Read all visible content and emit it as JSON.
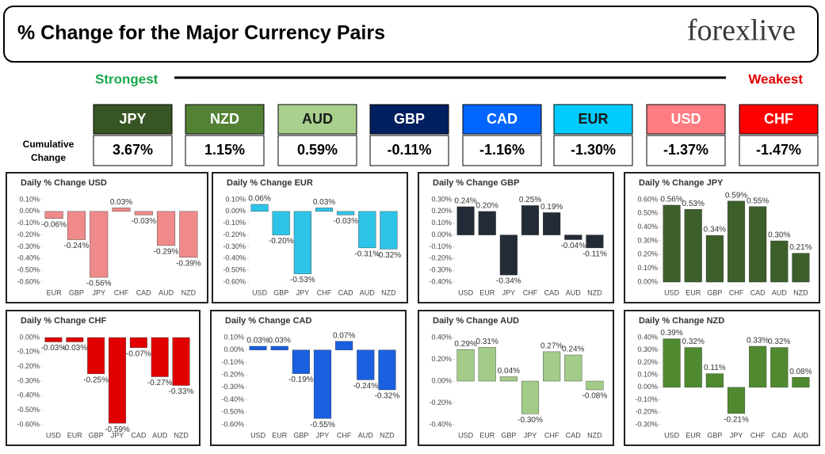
{
  "header": {
    "title": "% Change for the Major Currency Pairs",
    "logo": "forexlive"
  },
  "ranking": {
    "strongest": "Strongest",
    "weakest": "Weakest",
    "row_label": "Cumulative Change",
    "currencies": [
      "JPY",
      "NZD",
      "AUD",
      "GBP",
      "CAD",
      "EUR",
      "USD",
      "CHF"
    ],
    "changes": [
      "3.67%",
      "1.15%",
      "0.59%",
      "-0.11%",
      "-1.16%",
      "-1.30%",
      "-1.37%",
      "-1.47%"
    ],
    "colors": [
      "#375623",
      "#548235",
      "#a9d08e",
      "#002060",
      "#0066ff",
      "#00ccff",
      "#ff7c80",
      "#ff0000"
    ],
    "text_colors": [
      "#ffffff",
      "#ffffff",
      "#1a1a1a",
      "#ffffff",
      "#ffffff",
      "#1a1a1a",
      "#ffffff",
      "#ffffff"
    ]
  },
  "chart_data": [
    {
      "type": "bar",
      "title": "Daily % Change USD",
      "color": "#f08a8a",
      "categories": [
        "EUR",
        "GBP",
        "JPY",
        "CHF",
        "CAD",
        "AUD",
        "NZD"
      ],
      "values": [
        -0.06,
        -0.24,
        -0.56,
        0.03,
        -0.03,
        -0.29,
        -0.39
      ],
      "value_labels": [
        "-0.06%",
        "-0.24%",
        "-0.56%",
        "0.03%",
        "-0.03%",
        "-0.29%",
        "-0.39%"
      ],
      "ylim": [
        -0.6,
        0.1
      ],
      "yticks": [
        {
          "value": 0.1,
          "label": "0.10%"
        },
        {
          "value": 0,
          "label": "0.00%"
        },
        {
          "value": -0.1,
          "label": "-0.10%"
        },
        {
          "value": -0.2,
          "label": "-0.20%"
        },
        {
          "value": -0.3,
          "label": "-0.30%"
        },
        {
          "value": -0.4,
          "label": "-0.40%"
        },
        {
          "value": -0.5,
          "label": "-0.50%"
        },
        {
          "value": -0.6,
          "label": "-0.60%"
        }
      ]
    },
    {
      "type": "bar",
      "title": "Daily % Change EUR",
      "color": "#2ec4e8",
      "categories": [
        "USD",
        "GBP",
        "JPY",
        "CHF",
        "CAD",
        "AUD",
        "NZD"
      ],
      "values": [
        0.06,
        -0.2,
        -0.53,
        0.03,
        -0.03,
        -0.31,
        -0.32
      ],
      "value_labels": [
        "0.06%",
        "-0.20%",
        "-0.53%",
        "0.03%",
        "-0.03%",
        "-0.31%",
        "-0.32%"
      ],
      "ylim": [
        -0.6,
        0.1
      ],
      "yticks": [
        {
          "value": 0.1,
          "label": "0.10%"
        },
        {
          "value": 0,
          "label": "0.00%"
        },
        {
          "value": -0.1,
          "label": "-0.10%"
        },
        {
          "value": -0.2,
          "label": "-0.20%"
        },
        {
          "value": -0.3,
          "label": "-0.30%"
        },
        {
          "value": -0.4,
          "label": "-0.40%"
        },
        {
          "value": -0.5,
          "label": "-0.50%"
        },
        {
          "value": -0.6,
          "label": "-0.60%"
        }
      ]
    },
    {
      "type": "bar",
      "title": "Daily % Change GBP",
      "color": "#222b36",
      "categories": [
        "USD",
        "EUR",
        "JPY",
        "CHF",
        "CAD",
        "AUD",
        "NZD"
      ],
      "values": [
        0.24,
        0.2,
        -0.34,
        0.25,
        0.19,
        -0.04,
        -0.11
      ],
      "value_labels": [
        "0.24%",
        "0.20%",
        "-0.34%",
        "0.25%",
        "0.19%",
        "-0.04%",
        "-0.11%"
      ],
      "ylim": [
        -0.4,
        0.3
      ],
      "yticks": [
        {
          "value": 0.3,
          "label": "0.30%"
        },
        {
          "value": 0.2,
          "label": "0.20%"
        },
        {
          "value": 0.1,
          "label": "0.10%"
        },
        {
          "value": 0,
          "label": "0.00%"
        },
        {
          "value": -0.1,
          "label": "-0.10%"
        },
        {
          "value": -0.2,
          "label": "-0.20%"
        },
        {
          "value": -0.3,
          "label": "-0.30%"
        },
        {
          "value": -0.4,
          "label": "-0.40%"
        }
      ]
    },
    {
      "type": "bar",
      "title": "Daily % Change JPY",
      "color": "#3d5f2a",
      "categories": [
        "USD",
        "EUR",
        "GBP",
        "CHF",
        "CAD",
        "AUD",
        "NZD"
      ],
      "values": [
        0.56,
        0.53,
        0.34,
        0.59,
        0.55,
        0.3,
        0.21
      ],
      "value_labels": [
        "0.56%",
        "0.53%",
        "0.34%",
        "0.59%",
        "0.55%",
        "0.30%",
        "0.21%"
      ],
      "ylim": [
        0,
        0.6
      ],
      "yticks": [
        {
          "value": 0.6,
          "label": "0.60%"
        },
        {
          "value": 0.5,
          "label": "0.50%"
        },
        {
          "value": 0.4,
          "label": "0.40%"
        },
        {
          "value": 0.3,
          "label": "0.30%"
        },
        {
          "value": 0.2,
          "label": "0.20%"
        },
        {
          "value": 0.1,
          "label": "0.10%"
        },
        {
          "value": 0,
          "label": "0.00%"
        }
      ]
    },
    {
      "type": "bar",
      "title": "Daily % Change CHF",
      "color": "#e00000",
      "categories": [
        "USD",
        "EUR",
        "GBP",
        "JPY",
        "CAD",
        "AUD",
        "NZD"
      ],
      "values": [
        -0.03,
        -0.03,
        -0.25,
        -0.59,
        -0.07,
        -0.27,
        -0.33
      ],
      "value_labels": [
        "-0.03%",
        "-0.03%",
        "-0.25%",
        "-0.59%",
        "-0.07%",
        "-0.27%",
        "-0.33%"
      ],
      "ylim": [
        -0.6,
        0
      ],
      "yticks": [
        {
          "value": 0,
          "label": "0.00%"
        },
        {
          "value": -0.1,
          "label": "-0.10%"
        },
        {
          "value": -0.2,
          "label": "-0.20%"
        },
        {
          "value": -0.3,
          "label": "-0.30%"
        },
        {
          "value": -0.4,
          "label": "-0.40%"
        },
        {
          "value": -0.5,
          "label": "-0.50%"
        },
        {
          "value": -0.6,
          "label": "-0.60%"
        }
      ]
    },
    {
      "type": "bar",
      "title": "Daily % Change CAD",
      "color": "#1a5fe0",
      "categories": [
        "USD",
        "EUR",
        "GBP",
        "JPY",
        "CHF",
        "AUD",
        "NZD"
      ],
      "values": [
        0.03,
        0.03,
        -0.19,
        -0.55,
        0.07,
        -0.24,
        -0.32
      ],
      "value_labels": [
        "0.03%",
        "0.03%",
        "-0.19%",
        "-0.55%",
        "0.07%",
        "-0.24%",
        "-0.32%"
      ],
      "ylim": [
        -0.6,
        0.1
      ],
      "yticks": [
        {
          "value": 0.1,
          "label": "0.10%"
        },
        {
          "value": 0,
          "label": "0.00%"
        },
        {
          "value": -0.1,
          "label": "-0.10%"
        },
        {
          "value": -0.2,
          "label": "-0.20%"
        },
        {
          "value": -0.3,
          "label": "-0.30%"
        },
        {
          "value": -0.4,
          "label": "-0.40%"
        },
        {
          "value": -0.5,
          "label": "-0.50%"
        },
        {
          "value": -0.6,
          "label": "-0.60%"
        }
      ]
    },
    {
      "type": "bar",
      "title": "Daily % Change AUD",
      "color": "#a3cc88",
      "categories": [
        "USD",
        "EUR",
        "GBP",
        "JPY",
        "CHF",
        "CAD",
        "NZD"
      ],
      "values": [
        0.29,
        0.31,
        0.04,
        -0.3,
        0.27,
        0.24,
        -0.08
      ],
      "value_labels": [
        "0.29%",
        "0.31%",
        "0.04%",
        "-0.30%",
        "0.27%",
        "0.24%",
        "-0.08%"
      ],
      "ylim": [
        -0.4,
        0.4
      ],
      "yticks": [
        {
          "value": 0.4,
          "label": "0.40%"
        },
        {
          "value": 0.2,
          "label": "0.20%"
        },
        {
          "value": 0,
          "label": "0.00%"
        },
        {
          "value": -0.2,
          "label": "-0.20%"
        },
        {
          "value": -0.4,
          "label": "-0.40%"
        }
      ]
    },
    {
      "type": "bar",
      "title": "Daily % Change NZD",
      "color": "#4f8a30",
      "categories": [
        "USD",
        "EUR",
        "GBP",
        "JPY",
        "CHF",
        "CAD",
        "AUD"
      ],
      "values": [
        0.39,
        0.32,
        0.11,
        -0.21,
        0.33,
        0.32,
        0.08
      ],
      "value_labels": [
        "0.39%",
        "0.32%",
        "0.11%",
        "-0.21%",
        "0.33%",
        "0.32%",
        "0.08%"
      ],
      "ylim": [
        -0.3,
        0.4
      ],
      "yticks": [
        {
          "value": 0.4,
          "label": "0.40%"
        },
        {
          "value": 0.3,
          "label": "0.30%"
        },
        {
          "value": 0.2,
          "label": "0.20%"
        },
        {
          "value": 0.1,
          "label": "0.10%"
        },
        {
          "value": 0,
          "label": "0.00%"
        },
        {
          "value": -0.1,
          "label": "-0.10%"
        },
        {
          "value": -0.2,
          "label": "-0.20%"
        },
        {
          "value": -0.3,
          "label": "-0.30%"
        }
      ]
    }
  ]
}
